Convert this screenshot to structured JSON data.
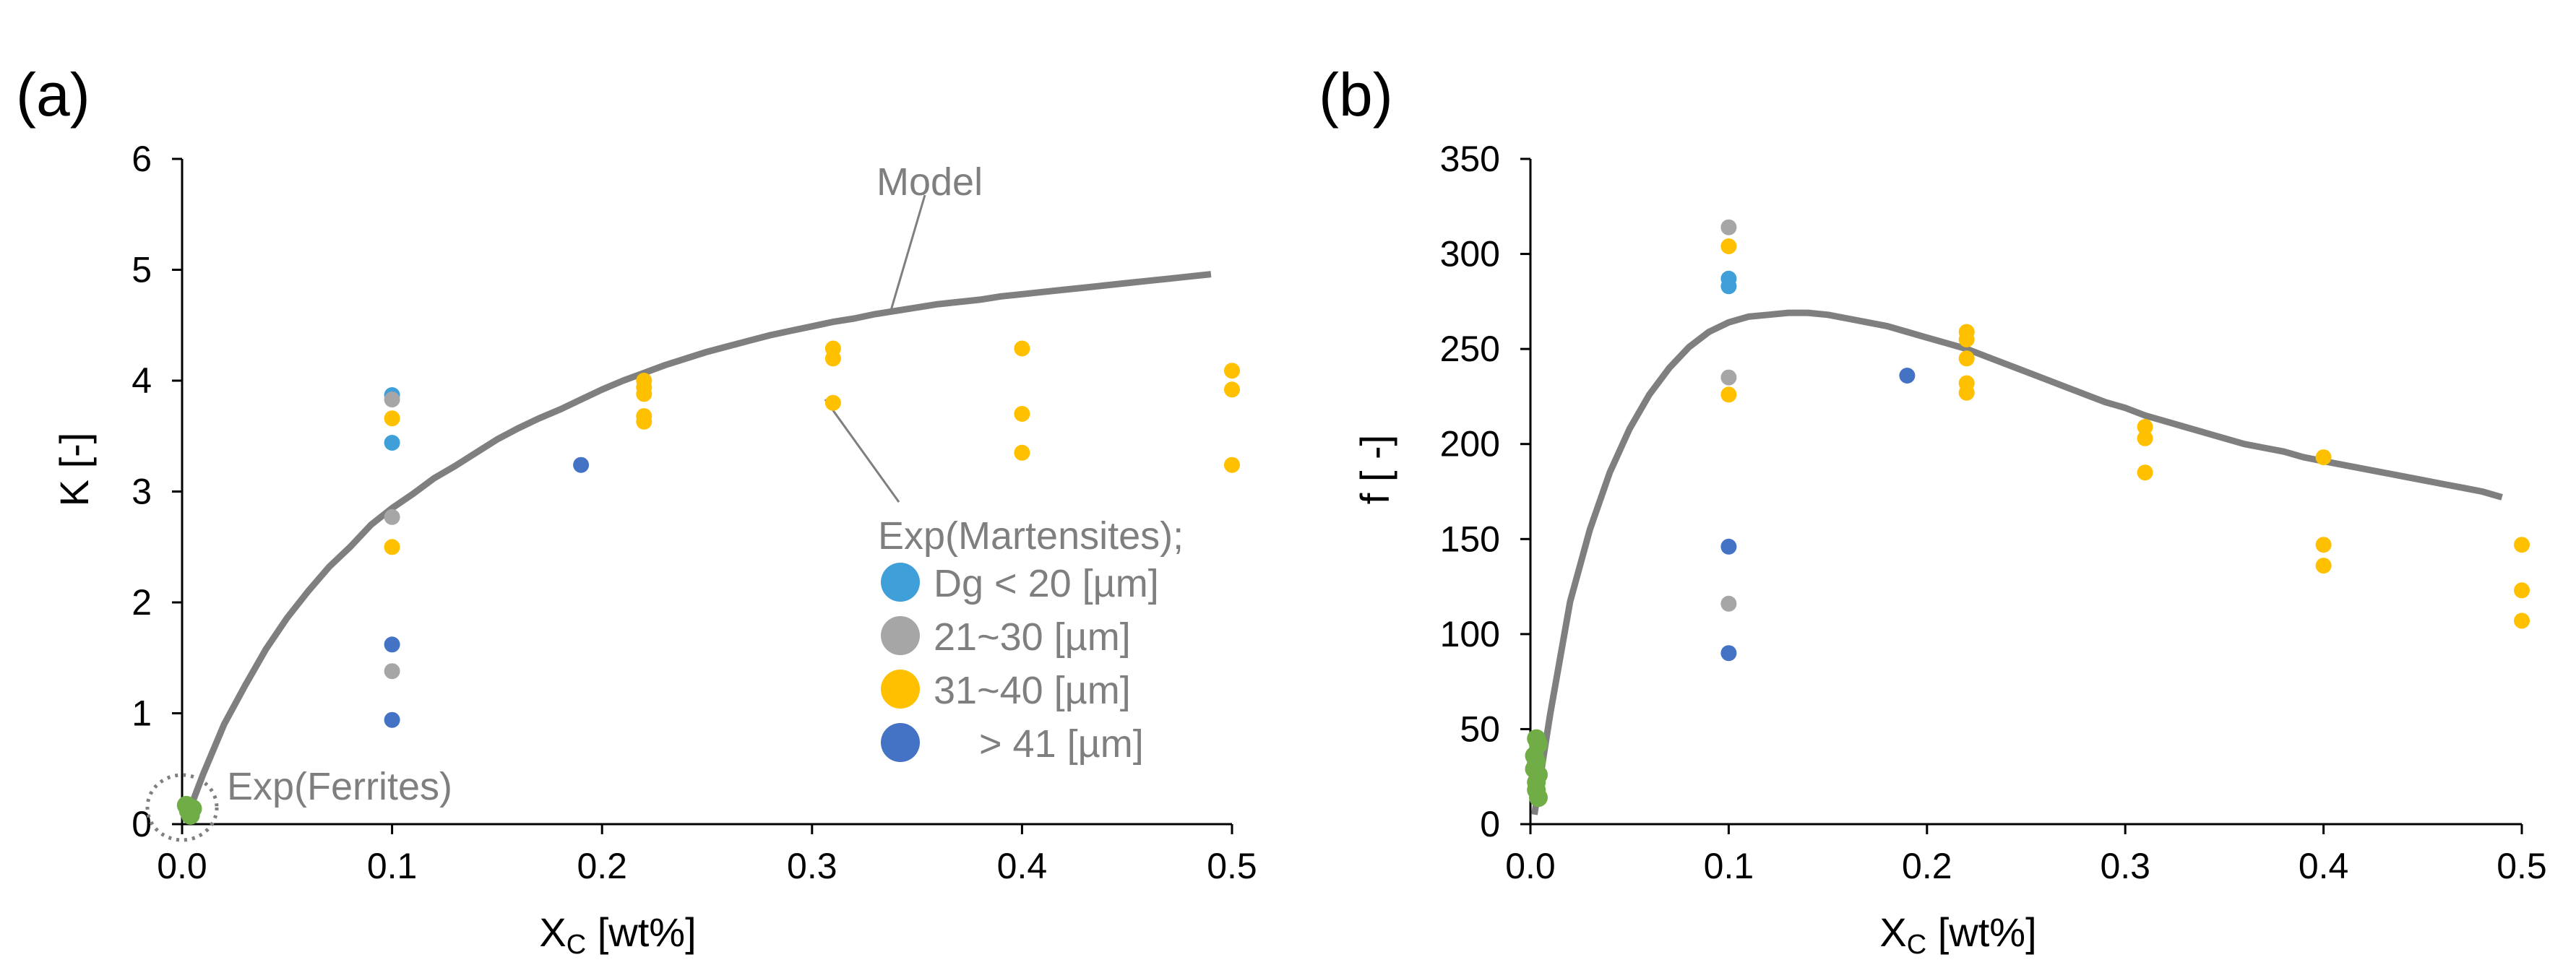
{
  "figure": {
    "colors": {
      "axis": "#000000",
      "model": "#7f7f7f",
      "leader": "#7f7f7f",
      "dg_lt20": "#3f9fd8",
      "dg_21_30": "#a6a6a6",
      "dg_31_40": "#ffc000",
      "dg_gt41": "#4472c4",
      "ferrite": "#70ad47"
    }
  },
  "chart_data": [
    {
      "panel": "(a)",
      "type": "scatter",
      "ylabel": "K [-]",
      "xlabel": {
        "main": "X",
        "sub": "C",
        "rest": " [wt%]"
      },
      "xlim": [
        0,
        0.5
      ],
      "ylim": [
        0,
        6
      ],
      "xticks": [
        "0.0",
        "0.1",
        "0.2",
        "0.3",
        "0.4",
        "0.5"
      ],
      "yticks": [
        "0",
        "1",
        "2",
        "3",
        "4",
        "5",
        "6"
      ],
      "model": {
        "name": "Model",
        "x": [
          0.002,
          0.01,
          0.02,
          0.03,
          0.04,
          0.05,
          0.06,
          0.07,
          0.08,
          0.09,
          0.1,
          0.11,
          0.12,
          0.13,
          0.14,
          0.15,
          0.16,
          0.17,
          0.18,
          0.19,
          0.2,
          0.21,
          0.22,
          0.23,
          0.24,
          0.25,
          0.26,
          0.27,
          0.28,
          0.29,
          0.3,
          0.31,
          0.32,
          0.33,
          0.34,
          0.35,
          0.36,
          0.37,
          0.38,
          0.39,
          0.4,
          0.41,
          0.42,
          0.43,
          0.44,
          0.45,
          0.46,
          0.47,
          0.48,
          0.49
        ],
        "y": [
          0.05,
          0.45,
          0.9,
          1.25,
          1.58,
          1.86,
          2.1,
          2.32,
          2.5,
          2.7,
          2.85,
          2.98,
          3.12,
          3.23,
          3.35,
          3.47,
          3.57,
          3.66,
          3.74,
          3.83,
          3.92,
          4.0,
          4.07,
          4.14,
          4.2,
          4.26,
          4.31,
          4.36,
          4.41,
          4.45,
          4.49,
          4.53,
          4.56,
          4.6,
          4.63,
          4.66,
          4.69,
          4.71,
          4.73,
          4.76,
          4.78,
          4.8,
          4.82,
          4.84,
          4.86,
          4.88,
          4.9,
          4.92,
          4.94,
          4.96
        ]
      },
      "series": [
        {
          "name": "Dg < 20 [µm]",
          "color_key": "dg_lt20",
          "points": [
            [
              0.1,
              3.87
            ],
            [
              0.1,
              3.44
            ]
          ]
        },
        {
          "name": "21~30 [µm]",
          "color_key": "dg_21_30",
          "points": [
            [
              0.1,
              3.83
            ],
            [
              0.1,
              2.77
            ],
            [
              0.1,
              1.38
            ]
          ]
        },
        {
          "name": "31~40 [µm]",
          "color_key": "dg_31_40",
          "points": [
            [
              0.1,
              3.66
            ],
            [
              0.1,
              2.5
            ],
            [
              0.22,
              4.0
            ],
            [
              0.22,
              3.94
            ],
            [
              0.22,
              3.88
            ],
            [
              0.22,
              3.68
            ],
            [
              0.22,
              3.63
            ],
            [
              0.31,
              4.29
            ],
            [
              0.31,
              4.2
            ],
            [
              0.31,
              3.8
            ],
            [
              0.4,
              4.29
            ],
            [
              0.4,
              3.7
            ],
            [
              0.4,
              3.35
            ],
            [
              0.5,
              4.09
            ],
            [
              0.5,
              3.92
            ],
            [
              0.5,
              3.24
            ]
          ]
        },
        {
          "name": "> 41 [µm]",
          "color_key": "dg_gt41",
          "points": [
            [
              0.1,
              1.62
            ],
            [
              0.1,
              0.94
            ],
            [
              0.19,
              3.24
            ]
          ]
        },
        {
          "name": "Exp(Ferrites)",
          "color_key": "ferrite",
          "points": [
            [
              0.002,
              0.17
            ],
            [
              0.003,
              0.12
            ],
            [
              0.004,
              0.08
            ],
            [
              0.005,
              0.14
            ]
          ]
        }
      ],
      "legend": {
        "title": "Exp(Martensites);",
        "entries": [
          "Dg < 20 [µm]",
          "21~30 [µm]",
          "31~40 [µm]",
          "> 41 [µm]"
        ]
      },
      "annotations": {
        "model": "Model",
        "ferrites": "Exp(Ferrites)"
      }
    },
    {
      "panel": "(b)",
      "type": "scatter",
      "ylabel": "f [ -]",
      "xlabel": {
        "main": "X",
        "sub": "C",
        "rest": " [wt%]"
      },
      "xlim": [
        0,
        0.5
      ],
      "ylim": [
        0,
        350
      ],
      "xticks": [
        "0.0",
        "0.1",
        "0.2",
        "0.3",
        "0.4",
        "0.5"
      ],
      "yticks": [
        "0",
        "50",
        "100",
        "150",
        "200",
        "250",
        "300",
        "350"
      ],
      "model": {
        "name": "Model",
        "x": [
          0.002,
          0.01,
          0.02,
          0.03,
          0.04,
          0.05,
          0.06,
          0.07,
          0.08,
          0.09,
          0.1,
          0.11,
          0.12,
          0.13,
          0.14,
          0.15,
          0.16,
          0.17,
          0.18,
          0.19,
          0.2,
          0.21,
          0.22,
          0.23,
          0.24,
          0.25,
          0.26,
          0.27,
          0.28,
          0.29,
          0.3,
          0.31,
          0.32,
          0.33,
          0.34,
          0.35,
          0.36,
          0.37,
          0.38,
          0.39,
          0.4,
          0.41,
          0.42,
          0.43,
          0.44,
          0.45,
          0.46,
          0.47,
          0.48,
          0.49
        ],
        "y": [
          5,
          58,
          117,
          155,
          185,
          208,
          226,
          240,
          251,
          259,
          264,
          267,
          268,
          269,
          269,
          268,
          266,
          264,
          262,
          259,
          256,
          253,
          250,
          246,
          242,
          238,
          234,
          230,
          226,
          222,
          219,
          215,
          212,
          209,
          206,
          203,
          200,
          198,
          196,
          193,
          191,
          189,
          187,
          185,
          183,
          181,
          179,
          177,
          175,
          172
        ]
      },
      "series": [
        {
          "name": "Dg < 20 [µm]",
          "color_key": "dg_lt20",
          "points": [
            [
              0.1,
              287
            ],
            [
              0.1,
              283
            ]
          ]
        },
        {
          "name": "21~30 [µm]",
          "color_key": "dg_21_30",
          "points": [
            [
              0.1,
              314
            ],
            [
              0.1,
              235
            ],
            [
              0.1,
              116
            ]
          ]
        },
        {
          "name": "31~40 [µm]",
          "color_key": "dg_31_40",
          "points": [
            [
              0.1,
              304
            ],
            [
              0.1,
              226
            ],
            [
              0.22,
              259
            ],
            [
              0.22,
              255
            ],
            [
              0.22,
              245
            ],
            [
              0.22,
              232
            ],
            [
              0.22,
              227
            ],
            [
              0.31,
              209
            ],
            [
              0.31,
              203
            ],
            [
              0.31,
              185
            ],
            [
              0.4,
              193
            ],
            [
              0.4,
              147
            ],
            [
              0.4,
              136
            ],
            [
              0.5,
              147
            ],
            [
              0.5,
              123
            ],
            [
              0.5,
              107
            ]
          ]
        },
        {
          "name": "> 41 [µm]",
          "color_key": "dg_gt41",
          "points": [
            [
              0.1,
              146
            ],
            [
              0.1,
              90
            ],
            [
              0.19,
              236
            ]
          ]
        },
        {
          "name": "Exp(Ferrites)",
          "color_key": "ferrite",
          "points": [
            [
              0.003,
              45
            ],
            [
              0.004,
              42
            ],
            [
              0.002,
              36
            ],
            [
              0.003,
              33
            ],
            [
              0.002,
              29
            ],
            [
              0.004,
              26
            ],
            [
              0.003,
              22
            ],
            [
              0.003,
              18
            ],
            [
              0.004,
              14
            ]
          ]
        }
      ]
    }
  ]
}
